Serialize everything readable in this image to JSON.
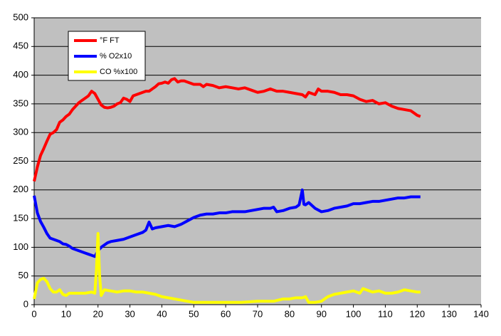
{
  "chart_data": {
    "type": "line",
    "xlim": [
      0,
      140
    ],
    "xticks": [
      0,
      10,
      20,
      30,
      40,
      50,
      60,
      70,
      80,
      90,
      100,
      110,
      120,
      130,
      140
    ],
    "ylim": [
      0,
      500
    ],
    "yticks": [
      0,
      50,
      100,
      150,
      200,
      250,
      300,
      350,
      400,
      450,
      500
    ],
    "grid": true,
    "legend": "top-left",
    "background": "#c0c0c0",
    "series": [
      {
        "name": "°F FT",
        "color": "#ff0000",
        "x": [
          0,
          1,
          2,
          3,
          4,
          5,
          6,
          7,
          8,
          9,
          10,
          11,
          12,
          13,
          14,
          15,
          16,
          17,
          18,
          19,
          20,
          21,
          22,
          23,
          24,
          25,
          26,
          27,
          28,
          29,
          30,
          31,
          32,
          33,
          34,
          35,
          36,
          37,
          38,
          39,
          40,
          41,
          42,
          43,
          44,
          45,
          46,
          47,
          48,
          49,
          50,
          52,
          53,
          54,
          56,
          58,
          60,
          62,
          64,
          66,
          68,
          70,
          72,
          74,
          76,
          78,
          80,
          82,
          84,
          85,
          86,
          88,
          89,
          90,
          92,
          94,
          96,
          98,
          100,
          102,
          104,
          106,
          108,
          110,
          112,
          114,
          116,
          118,
          119,
          120,
          121
        ],
        "values": [
          215,
          240,
          260,
          272,
          285,
          297,
          300,
          305,
          318,
          322,
          328,
          332,
          340,
          346,
          352,
          356,
          360,
          364,
          372,
          368,
          358,
          348,
          344,
          343,
          344,
          346,
          350,
          352,
          360,
          358,
          354,
          364,
          366,
          368,
          370,
          372,
          372,
          376,
          380,
          385,
          386,
          388,
          386,
          392,
          394,
          388,
          390,
          390,
          388,
          386,
          384,
          384,
          380,
          384,
          382,
          378,
          380,
          378,
          376,
          378,
          374,
          370,
          372,
          376,
          372,
          372,
          370,
          368,
          366,
          362,
          370,
          366,
          376,
          372,
          372,
          370,
          366,
          366,
          364,
          358,
          354,
          356,
          350,
          352,
          346,
          342,
          340,
          338,
          334,
          330,
          328
        ]
      },
      {
        "name": "% O2x10",
        "color": "#0000ff",
        "x": [
          0,
          1,
          2,
          3,
          4,
          5,
          6,
          7,
          8,
          9,
          10,
          11,
          12,
          13,
          14,
          15,
          16,
          17,
          18,
          19,
          20,
          21,
          22,
          23,
          24,
          26,
          28,
          30,
          32,
          34,
          35,
          36,
          37,
          38,
          40,
          42,
          44,
          46,
          48,
          50,
          52,
          54,
          56,
          58,
          60,
          62,
          64,
          66,
          68,
          70,
          72,
          74,
          75,
          76,
          78,
          80,
          82,
          83,
          84,
          84.5,
          85,
          86,
          88,
          90,
          92,
          94,
          96,
          98,
          100,
          102,
          104,
          106,
          108,
          110,
          112,
          114,
          116,
          118,
          120,
          121
        ],
        "values": [
          190,
          160,
          145,
          135,
          124,
          116,
          114,
          112,
          110,
          106,
          105,
          102,
          98,
          96,
          94,
          92,
          90,
          88,
          86,
          84,
          94,
          100,
          104,
          108,
          110,
          112,
          114,
          118,
          122,
          126,
          130,
          144,
          132,
          134,
          136,
          138,
          136,
          140,
          146,
          152,
          156,
          158,
          158,
          160,
          160,
          162,
          162,
          162,
          164,
          166,
          168,
          168,
          170,
          162,
          164,
          168,
          170,
          174,
          200,
          175,
          174,
          178,
          168,
          162,
          164,
          168,
          170,
          172,
          176,
          176,
          178,
          180,
          180,
          182,
          184,
          186,
          186,
          188,
          188,
          188
        ]
      },
      {
        "name": "CO %x100",
        "color": "#ffff00",
        "x": [
          0,
          1,
          2,
          3,
          4,
          5,
          6,
          7,
          8,
          9,
          10,
          11,
          12,
          14,
          16,
          18,
          19,
          19.5,
          20,
          20.5,
          21,
          22,
          24,
          26,
          28,
          30,
          32,
          34,
          36,
          38,
          40,
          42,
          44,
          46,
          48,
          50,
          55,
          60,
          65,
          70,
          75,
          78,
          80,
          82,
          84,
          85,
          86,
          88,
          90,
          92,
          94,
          96,
          98,
          100,
          102,
          103,
          104,
          106,
          108,
          110,
          112,
          114,
          116,
          118,
          120,
          121
        ],
        "values": [
          10,
          38,
          44,
          46,
          40,
          28,
          22,
          22,
          26,
          18,
          16,
          20,
          20,
          20,
          20,
          22,
          20,
          60,
          124,
          50,
          16,
          26,
          24,
          22,
          24,
          24,
          22,
          22,
          20,
          18,
          14,
          12,
          10,
          8,
          6,
          4,
          4,
          4,
          4,
          6,
          6,
          10,
          10,
          12,
          12,
          14,
          4,
          4,
          6,
          14,
          18,
          20,
          22,
          24,
          20,
          28,
          26,
          22,
          24,
          20,
          20,
          22,
          26,
          24,
          22,
          22
        ]
      }
    ]
  }
}
